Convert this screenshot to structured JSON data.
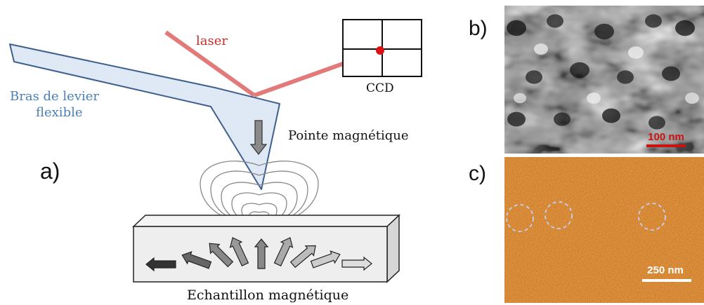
{
  "panel_a": {
    "panel_label": "a)",
    "cantilever_label": [
      "Bras de levier",
      "flexible"
    ],
    "laser_label": "laser",
    "ccd_label": "CCD",
    "tip_label": "Pointe magnétique",
    "sample_label": "Echantillon magnétique"
  },
  "panel_b": {
    "panel_label": "b)",
    "scalebar_label": "100 nm"
  },
  "panel_c": {
    "panel_label": "c)",
    "scalebar_label": "250 nm"
  },
  "colors": {
    "cantilever_fill": "#dfe9f5",
    "cantilever_stroke": "#3f5f8f",
    "cantilever_text": "#4a7fb8",
    "laser": "#e06a6a",
    "laser_text": "#cc2a2a",
    "ccd_spot": "#dd1111",
    "scalebar_b": "#cc1111",
    "sample_fill": "#eeeeee"
  }
}
